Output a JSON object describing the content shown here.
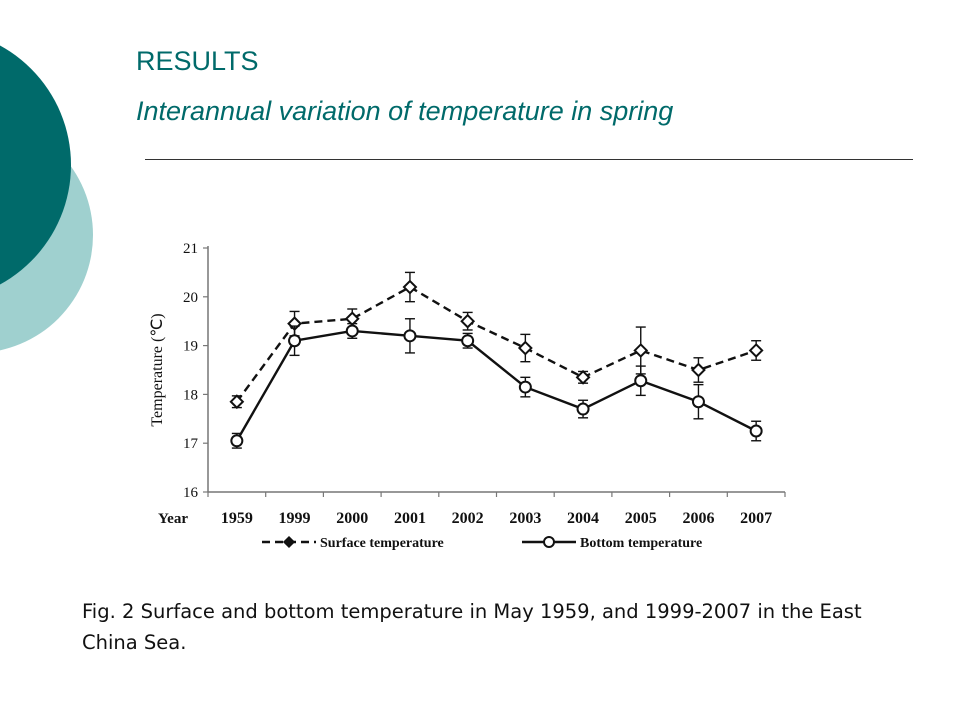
{
  "slide": {
    "title": "RESULTS",
    "subtitle": "Interannual variation of temperature in spring",
    "caption": "Fig. 2 Surface and bottom temperature in May 1959, and 1999-2007 in the East China Sea.",
    "colors": {
      "accent_dark": "#006a6a",
      "accent_light": "#9fd0cf"
    }
  },
  "chart_data": {
    "type": "line",
    "title": "",
    "xlabel": "Year",
    "ylabel": "Temperature (℃)",
    "ylim": [
      16,
      21
    ],
    "yticks": [
      "16",
      "17",
      "18",
      "19",
      "20",
      "21"
    ],
    "categories": [
      "1959",
      "1999",
      "2000",
      "2001",
      "2002",
      "2003",
      "2004",
      "2005",
      "2006",
      "2007"
    ],
    "grid": false,
    "legend_position": "bottom",
    "series": [
      {
        "name": "Surface temperature",
        "style": "dashed",
        "marker": "diamond",
        "color": "#111111",
        "values": [
          17.85,
          19.45,
          19.55,
          20.2,
          19.5,
          18.95,
          18.35,
          18.9,
          18.5,
          18.9
        ],
        "errors": [
          0.12,
          0.25,
          0.2,
          0.3,
          0.18,
          0.28,
          0.12,
          0.48,
          0.25,
          0.2
        ]
      },
      {
        "name": "Bottom temperature",
        "style": "solid",
        "marker": "circle",
        "color": "#111111",
        "values": [
          17.05,
          19.1,
          19.3,
          19.2,
          19.1,
          18.15,
          17.7,
          18.28,
          17.85,
          17.25
        ],
        "errors": [
          0.15,
          0.3,
          0.15,
          0.35,
          0.15,
          0.2,
          0.18,
          0.3,
          0.35,
          0.2
        ]
      }
    ]
  }
}
